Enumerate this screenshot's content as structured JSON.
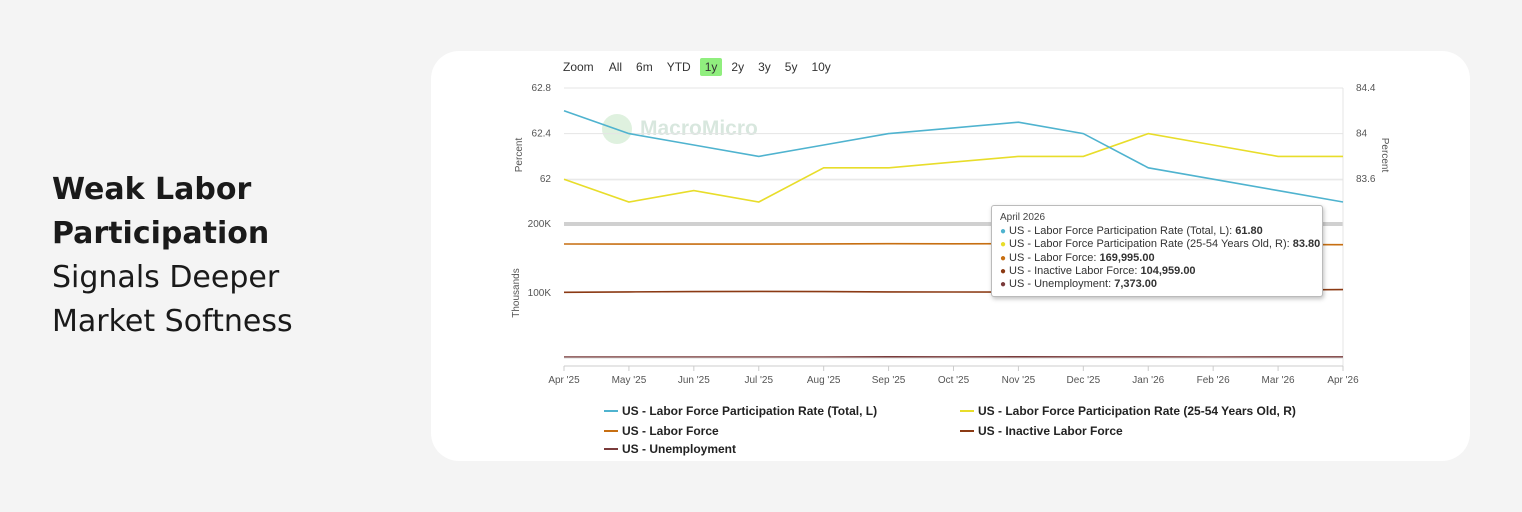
{
  "headline": {
    "line1": "Weak Labor",
    "line2": "Participation",
    "line3": "Signals Deeper",
    "line4": "Market Softness"
  },
  "zoom": {
    "label": "Zoom",
    "options": [
      "All",
      "6m",
      "YTD",
      "1y",
      "2y",
      "3y",
      "5y",
      "10y"
    ],
    "active": "1y"
  },
  "watermark": "MacroMicro",
  "tooltip": {
    "date": "April 2026",
    "rows": [
      {
        "label": "US - Labor Force Participation Rate (Total, L): ",
        "value": "61.80",
        "color": "#4fb3cf"
      },
      {
        "label": "US - Labor Force Participation Rate (25-54 Years Old, R): ",
        "value": "83.80",
        "color": "#e8dd2a"
      },
      {
        "label": "US - Labor Force: ",
        "value": "169,995.00",
        "color": "#c76f12"
      },
      {
        "label": "US - Inactive Labor Force: ",
        "value": "104,959.00",
        "color": "#8b3a14"
      },
      {
        "label": "US - Unemployment: ",
        "value": "7,373.00",
        "color": "#7a3b3b"
      }
    ]
  },
  "chart_data": {
    "type": "line",
    "x": [
      "Apr '25",
      "May '25",
      "Jun '25",
      "Jul '25",
      "Aug '25",
      "Sep '25",
      "Oct '25",
      "Nov '25",
      "Dec '25",
      "Jan '26",
      "Feb '26",
      "Mar '26",
      "Apr '26"
    ],
    "upper_panel": {
      "left_axis": {
        "label": "Percent",
        "ticks": [
          "62",
          "62.4",
          "62.8"
        ],
        "range": [
          61.8,
          62.8
        ]
      },
      "right_axis": {
        "label": "Percent",
        "ticks": [
          "83.6",
          "84",
          "84.4"
        ],
        "range": [
          83.4,
          84.4
        ]
      },
      "series": [
        {
          "name": "US - Labor Force Participation Rate (Total, L)",
          "axis": "left",
          "color": "#4fb3cf",
          "values": [
            62.6,
            62.4,
            62.3,
            62.2,
            62.3,
            62.4,
            62.45,
            62.5,
            62.4,
            62.1,
            62.0,
            61.9,
            61.8
          ]
        },
        {
          "name": "US - Labor Force Participation Rate (25-54 Years Old, R)",
          "axis": "right",
          "color": "#e8dd2a",
          "values": [
            83.6,
            83.4,
            83.5,
            83.4,
            83.7,
            83.7,
            83.75,
            83.8,
            83.8,
            84.0,
            83.9,
            83.8,
            83.8
          ]
        }
      ]
    },
    "lower_panel": {
      "axis": {
        "label": "Thousands",
        "ticks": [
          "100K",
          "200K"
        ],
        "range": [
          0,
          200000
        ]
      },
      "series": [
        {
          "name": "US - Labor Force",
          "color": "#c76f12",
          "values": [
            171000,
            170900,
            170800,
            170900,
            171100,
            171400,
            171300,
            171500,
            171200,
            170800,
            170400,
            170200,
            169995
          ]
        },
        {
          "name": "US - Inactive Labor Force",
          "color": "#8b3a14",
          "values": [
            101000,
            101600,
            102000,
            102300,
            102000,
            101600,
            101400,
            101300,
            101800,
            102800,
            103800,
            104400,
            104959
          ]
        },
        {
          "name": "US - Unemployment",
          "color": "#7a3b3b",
          "values": [
            7200,
            7150,
            7200,
            7100,
            7300,
            7500,
            7450,
            7500,
            7450,
            7350,
            7300,
            7380,
            7373
          ]
        }
      ]
    },
    "grid": true,
    "legend_position": "bottom"
  }
}
